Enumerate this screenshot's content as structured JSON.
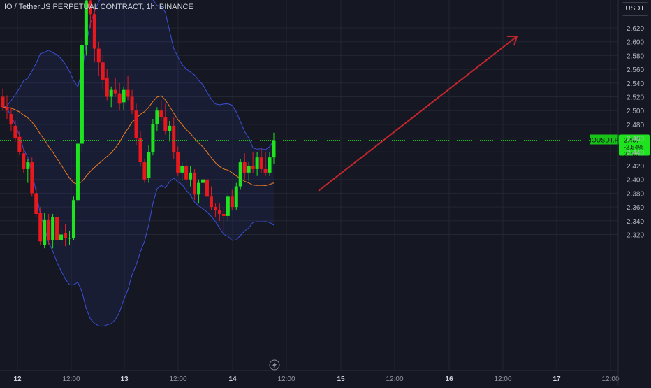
{
  "header": {
    "title": "IO / TetherUS PERPETUAL CONTRACT, 1h, BINANCE",
    "currency": "USDT"
  },
  "price_tag": {
    "symbol": "IOUSDT.P",
    "price": "2.457",
    "change": "-2.54%",
    "countdown": "21:57"
  },
  "colors": {
    "background": "#151822",
    "up": "#1ee31e",
    "down": "#e8191e",
    "band": "#3b4fd8",
    "basis": "#f07d1e",
    "arrow": "#c4262e",
    "price_line": "#17c317",
    "grid": "#232633"
  },
  "chart_data": {
    "type": "candlestick",
    "title": "IO / TetherUS PERPETUAL CONTRACT, 1h, BINANCE",
    "ylim": [
      2.31,
      2.67
    ],
    "yticks": [
      "2.320",
      "2.340",
      "2.360",
      "2.380",
      "2.400",
      "2.420",
      "2.440",
      "2.460",
      "2.480",
      "2.500",
      "2.520",
      "2.540",
      "2.560",
      "2.580",
      "2.600",
      "2.620"
    ],
    "xticks": [
      "12",
      "12:00",
      "13",
      "12:00",
      "14",
      "12:00",
      "15",
      "12:00",
      "16",
      "12:00",
      "17",
      "12:00"
    ],
    "grid": true,
    "indicator": "Bollinger Bands",
    "candles": [
      [
        2.52,
        2.532,
        2.5,
        2.505
      ],
      [
        2.505,
        2.522,
        2.488,
        2.5
      ],
      [
        2.495,
        2.505,
        2.47,
        2.48
      ],
      [
        2.478,
        2.486,
        2.455,
        2.46
      ],
      [
        2.462,
        2.47,
        2.435,
        2.44
      ],
      [
        2.438,
        2.445,
        2.41,
        2.415
      ],
      [
        2.415,
        2.43,
        2.395,
        2.425
      ],
      [
        2.425,
        2.432,
        2.375,
        2.38
      ],
      [
        2.38,
        2.388,
        2.345,
        2.35
      ],
      [
        2.352,
        2.36,
        2.305,
        2.31
      ],
      [
        2.305,
        2.352,
        2.3,
        2.342
      ],
      [
        2.342,
        2.35,
        2.305,
        2.312
      ],
      [
        2.312,
        2.35,
        2.3,
        2.345
      ],
      [
        2.345,
        2.355,
        2.305,
        2.312
      ],
      [
        2.312,
        2.33,
        2.305,
        2.32
      ],
      [
        2.322,
        2.335,
        2.303,
        2.315
      ],
      [
        2.315,
        2.325,
        2.305,
        2.315
      ],
      [
        2.315,
        2.375,
        2.312,
        2.37
      ],
      [
        2.37,
        2.458,
        2.365,
        2.452
      ],
      [
        2.452,
        2.605,
        2.44,
        2.595
      ],
      [
        2.595,
        2.67,
        2.58,
        2.66
      ],
      [
        2.66,
        2.665,
        2.62,
        2.64
      ],
      [
        2.64,
        2.648,
        2.57,
        2.59
      ],
      [
        2.59,
        2.6,
        2.55,
        2.57
      ],
      [
        2.57,
        2.58,
        2.53,
        2.545
      ],
      [
        2.548,
        2.56,
        2.515,
        2.52
      ],
      [
        2.52,
        2.535,
        2.505,
        2.53
      ],
      [
        2.53,
        2.548,
        2.52,
        2.525
      ],
      [
        2.525,
        2.54,
        2.5,
        2.51
      ],
      [
        2.512,
        2.535,
        2.5,
        2.53
      ],
      [
        2.53,
        2.55,
        2.515,
        2.52
      ],
      [
        2.52,
        2.53,
        2.495,
        2.5
      ],
      [
        2.5,
        2.51,
        2.45,
        2.46
      ],
      [
        2.46,
        2.47,
        2.42,
        2.425
      ],
      [
        2.425,
        2.43,
        2.395,
        2.4
      ],
      [
        2.402,
        2.45,
        2.395,
        2.44
      ],
      [
        2.44,
        2.488,
        2.435,
        2.48
      ],
      [
        2.48,
        2.505,
        2.47,
        2.5
      ],
      [
        2.5,
        2.515,
        2.485,
        2.49
      ],
      [
        2.49,
        2.51,
        2.465,
        2.47
      ],
      [
        2.47,
        2.485,
        2.455,
        2.478
      ],
      [
        2.478,
        2.49,
        2.43,
        2.44
      ],
      [
        2.44,
        2.448,
        2.405,
        2.41
      ],
      [
        2.41,
        2.425,
        2.398,
        2.42
      ],
      [
        2.42,
        2.43,
        2.395,
        2.4
      ],
      [
        2.4,
        2.42,
        2.39,
        2.41
      ],
      [
        2.41,
        2.415,
        2.37,
        2.378
      ],
      [
        2.378,
        2.4,
        2.365,
        2.395
      ],
      [
        2.395,
        2.408,
        2.385,
        2.4
      ],
      [
        2.4,
        2.402,
        2.37,
        2.375
      ],
      [
        2.375,
        2.39,
        2.355,
        2.36
      ],
      [
        2.36,
        2.365,
        2.345,
        2.355
      ],
      [
        2.355,
        2.365,
        2.34,
        2.35
      ],
      [
        2.35,
        2.36,
        2.325,
        2.347
      ],
      [
        2.347,
        2.38,
        2.34,
        2.375
      ],
      [
        2.375,
        2.385,
        2.355,
        2.36
      ],
      [
        2.36,
        2.395,
        2.355,
        2.39
      ],
      [
        2.39,
        2.43,
        2.385,
        2.425
      ],
      [
        2.425,
        2.438,
        2.4,
        2.41
      ],
      [
        2.41,
        2.425,
        2.398,
        2.42
      ],
      [
        2.42,
        2.44,
        2.41,
        2.415
      ],
      [
        2.415,
        2.44,
        2.405,
        2.432
      ],
      [
        2.432,
        2.445,
        2.41,
        2.415
      ],
      [
        2.415,
        2.44,
        2.405,
        2.41
      ],
      [
        2.41,
        2.44,
        2.405,
        2.432
      ],
      [
        2.432,
        2.468,
        2.422,
        2.457
      ]
    ]
  }
}
